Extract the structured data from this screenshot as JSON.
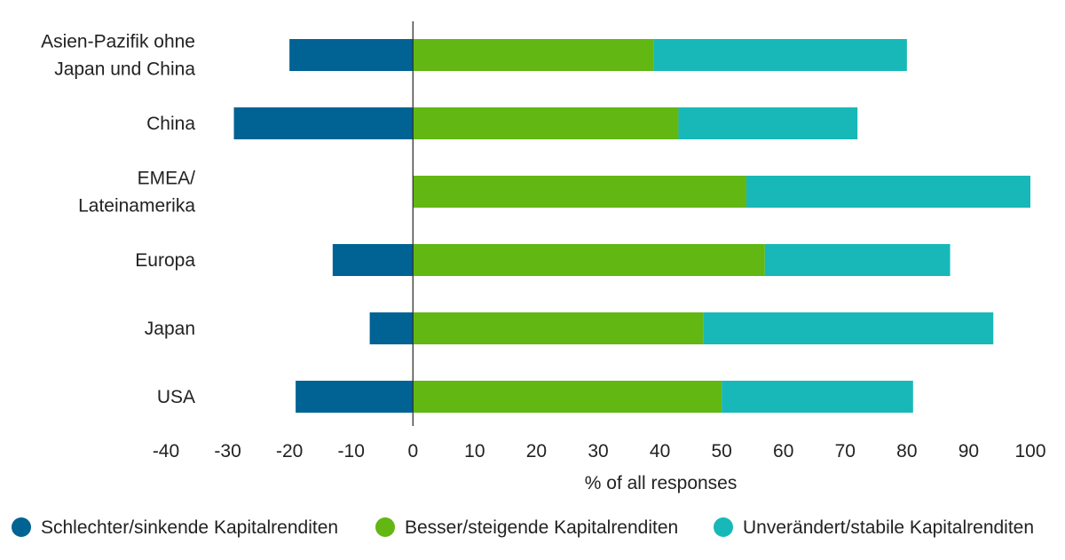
{
  "chart_data": {
    "type": "bar",
    "orientation": "horizontal",
    "stacked": true,
    "categories": [
      [
        "Asien-Pazifik ohne",
        "Japan und China"
      ],
      [
        "China"
      ],
      [
        "EMEA/",
        "Lateinamerika"
      ],
      [
        "Europa"
      ],
      [
        "Japan"
      ],
      [
        "USA"
      ]
    ],
    "series": [
      {
        "name": "Schlechter/sinkende Kapitalrenditen",
        "color": "#006394",
        "values": [
          -20,
          -29,
          0,
          -13,
          -7,
          -19
        ]
      },
      {
        "name": "Besser/steigende Kapitalrenditen",
        "color": "#62b713",
        "values": [
          39,
          43,
          54,
          57,
          47,
          50
        ]
      },
      {
        "name": "Unverändert/stabile Kapitalrenditen",
        "color": "#18b8b8",
        "values": [
          41,
          29,
          46,
          30,
          47,
          31
        ]
      }
    ],
    "xlabel": "% of all responses",
    "xlim": [
      -40,
      100
    ],
    "xticks": [
      "-40",
      "-30",
      "-20",
      "-10",
      "0",
      "10",
      "20",
      "30",
      "40",
      "50",
      "60",
      "70",
      "80",
      "90",
      "100"
    ],
    "grid": false,
    "legend_position": "bottom"
  }
}
